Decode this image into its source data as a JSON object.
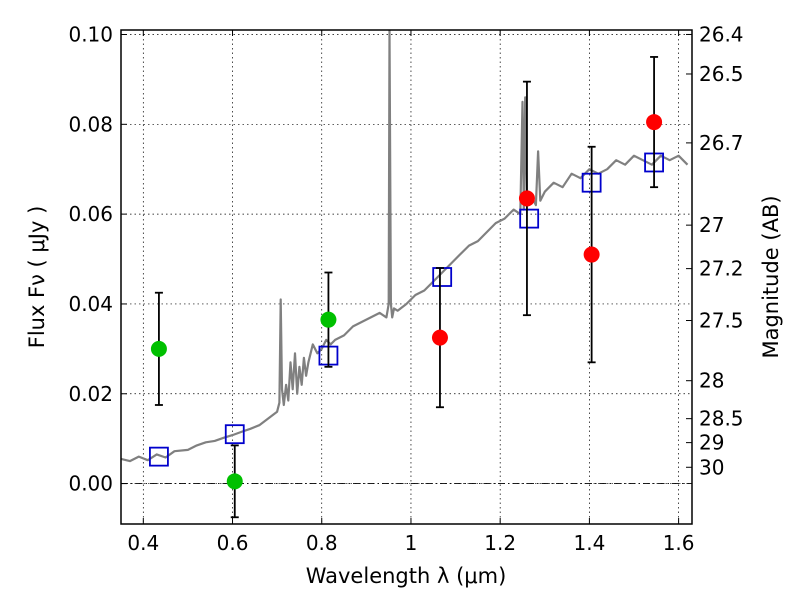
{
  "chart_data": {
    "type": "scatter",
    "xlabel": "Wavelength  λ (μm)",
    "ylabel": "Flux  Fν  ( μJy )",
    "ylabel_right": "Magnitude (AB)",
    "xlim": [
      0.35,
      1.63
    ],
    "ylim": [
      -0.009,
      0.101
    ],
    "grid": true,
    "x_ticks": [
      {
        "value": 0.4,
        "label": "0.4"
      },
      {
        "value": 0.6,
        "label": "0.6"
      },
      {
        "value": 0.8,
        "label": "0.8"
      },
      {
        "value": 1.0,
        "label": "1"
      },
      {
        "value": 1.2,
        "label": "1.2"
      },
      {
        "value": 1.4,
        "label": "1.4"
      },
      {
        "value": 1.6,
        "label": "1.6"
      }
    ],
    "y_ticks": [
      {
        "value": 0.0,
        "label": "0.00"
      },
      {
        "value": 0.02,
        "label": "0.02"
      },
      {
        "value": 0.04,
        "label": "0.04"
      },
      {
        "value": 0.06,
        "label": "0.06"
      },
      {
        "value": 0.08,
        "label": "0.08"
      },
      {
        "value": 0.1,
        "label": "0.10"
      }
    ],
    "mag_ticks": [
      {
        "value": 26.4,
        "label": "26.4"
      },
      {
        "value": 26.5,
        "label": "26.5"
      },
      {
        "value": 26.7,
        "label": "26.7"
      },
      {
        "value": 27,
        "label": "27"
      },
      {
        "value": 27.2,
        "label": "27.2"
      },
      {
        "value": 27.5,
        "label": "27.5"
      },
      {
        "value": 28,
        "label": "28"
      },
      {
        "value": 28.5,
        "label": "28.5"
      },
      {
        "value": 29,
        "label": "29"
      },
      {
        "value": 30,
        "label": "30"
      }
    ],
    "series": [
      {
        "type": "line",
        "color": "#808080",
        "x": [
          0.35,
          0.37,
          0.39,
          0.41,
          0.43,
          0.45,
          0.47,
          0.5,
          0.52,
          0.54,
          0.56,
          0.58,
          0.6,
          0.62,
          0.64,
          0.66,
          0.68,
          0.7,
          0.705,
          0.708,
          0.711,
          0.715,
          0.72,
          0.725,
          0.73,
          0.735,
          0.74,
          0.745,
          0.75,
          0.755,
          0.76,
          0.765,
          0.77,
          0.78,
          0.79,
          0.8,
          0.81,
          0.82,
          0.83,
          0.85,
          0.87,
          0.89,
          0.91,
          0.93,
          0.945,
          0.95,
          0.952,
          0.955,
          0.958,
          0.962,
          0.97,
          0.99,
          1.01,
          1.03,
          1.05,
          1.07,
          1.09,
          1.11,
          1.13,
          1.15,
          1.17,
          1.19,
          1.21,
          1.23,
          1.245,
          1.25,
          1.253,
          1.256,
          1.26,
          1.263,
          1.27,
          1.28,
          1.285,
          1.29,
          1.3,
          1.32,
          1.34,
          1.36,
          1.38,
          1.4,
          1.42,
          1.44,
          1.46,
          1.48,
          1.5,
          1.52,
          1.54,
          1.56,
          1.58,
          1.6,
          1.62
        ],
        "y": [
          0.0055,
          0.005,
          0.006,
          0.0052,
          0.0065,
          0.0058,
          0.0072,
          0.0075,
          0.0085,
          0.0092,
          0.0095,
          0.0102,
          0.0108,
          0.0115,
          0.0122,
          0.013,
          0.0145,
          0.016,
          0.018,
          0.041,
          0.021,
          0.0175,
          0.022,
          0.0185,
          0.027,
          0.021,
          0.029,
          0.02,
          0.026,
          0.022,
          0.028,
          0.024,
          0.027,
          0.031,
          0.029,
          0.03,
          0.032,
          0.031,
          0.032,
          0.033,
          0.035,
          0.036,
          0.037,
          0.038,
          0.037,
          0.04,
          0.101,
          0.04,
          0.037,
          0.039,
          0.0385,
          0.04,
          0.042,
          0.043,
          0.045,
          0.047,
          0.049,
          0.051,
          0.053,
          0.054,
          0.056,
          0.058,
          0.059,
          0.061,
          0.06,
          0.085,
          0.061,
          0.086,
          0.063,
          0.062,
          0.064,
          0.062,
          0.074,
          0.063,
          0.065,
          0.067,
          0.066,
          0.069,
          0.068,
          0.07,
          0.069,
          0.07,
          0.072,
          0.071,
          0.073,
          0.072,
          0.071,
          0.073,
          0.072,
          0.073,
          0.071
        ]
      },
      {
        "type": "points",
        "marker": "open-square",
        "color": "#0000cc",
        "x": [
          0.435,
          0.605,
          0.815,
          1.07,
          1.265,
          1.405,
          1.545
        ],
        "y": [
          0.006,
          0.011,
          0.0285,
          0.046,
          0.059,
          0.067,
          0.0715
        ]
      },
      {
        "type": "points",
        "marker": "filled-circle",
        "color": "#00c000",
        "x": [
          0.435,
          0.605,
          0.815
        ],
        "y": [
          0.03,
          0.0005,
          0.0365
        ],
        "yerr": [
          0.0125,
          0.008,
          0.0105
        ]
      },
      {
        "type": "points",
        "marker": "filled-circle",
        "color": "#ff0000",
        "x": [
          1.065,
          1.26,
          1.405,
          1.545
        ],
        "y": [
          0.0325,
          0.0635,
          0.051,
          0.0805
        ],
        "yerr": [
          0.0155,
          0.026,
          0.024,
          0.0145
        ]
      }
    ]
  }
}
